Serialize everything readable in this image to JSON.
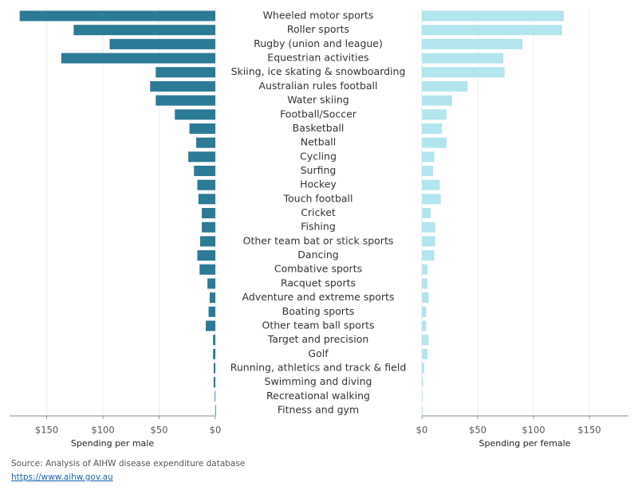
{
  "chart_data": [
    {
      "type": "bar",
      "orientation": "horizontal",
      "xlabel": "Spending per male",
      "color": "#2b7a96",
      "categories": [
        "Wheeled motor sports",
        "Roller sports",
        "Rugby (union and league)",
        "Equestrian activities",
        "Skiing, ice skating & snowboarding",
        "Australian rules football",
        "Water skiing",
        "Football/Soccer",
        "Basketball",
        "Netball",
        "Cycling",
        "Surfing",
        "Hockey",
        "Touch football",
        "Cricket",
        "Fishing",
        "Other team bat or stick sports",
        "Dancing",
        "Combative sports",
        "Racquet sports",
        "Adventure and extreme sports",
        "Boating sports",
        "Other team ball sports",
        "Target and precision",
        "Golf",
        "Running, athletics and track & field",
        "Swimming and diving",
        "Recreational walking",
        "Fitness and gym"
      ],
      "values": [
        174,
        126,
        94,
        137,
        53,
        58,
        53,
        36,
        23,
        17,
        24,
        19,
        16,
        15,
        12,
        12,
        13.5,
        16,
        14,
        7,
        5,
        6,
        8.5,
        2,
        2,
        1.5,
        1.5,
        0.5,
        0
      ],
      "xlim": [
        183,
        0
      ],
      "xticks": [
        {
          "value": 150,
          "label": "$150"
        },
        {
          "value": 100,
          "label": "$100"
        },
        {
          "value": 50,
          "label": "$50"
        },
        {
          "value": 0,
          "label": "$0"
        }
      ],
      "grid": true
    },
    {
      "type": "bar",
      "orientation": "horizontal",
      "xlabel": "Spending per female",
      "color": "#b3e5ee",
      "values": [
        127,
        125.5,
        90,
        73,
        74,
        41,
        27,
        22,
        18,
        22,
        11,
        10,
        16,
        17,
        8,
        12,
        12,
        11,
        5,
        5,
        6,
        4,
        4,
        6,
        5,
        2,
        1,
        0.5,
        0.5
      ],
      "xlim": [
        0,
        185
      ],
      "xticks": [
        {
          "value": 0,
          "label": "$0"
        },
        {
          "value": 50,
          "label": "$50"
        },
        {
          "value": 100,
          "label": "$100"
        },
        {
          "value": 150,
          "label": "$150"
        }
      ],
      "grid": true
    }
  ],
  "source": "Source: Analysis of AIHW disease expenditure database",
  "link": "https://www.aihw.gov.au"
}
